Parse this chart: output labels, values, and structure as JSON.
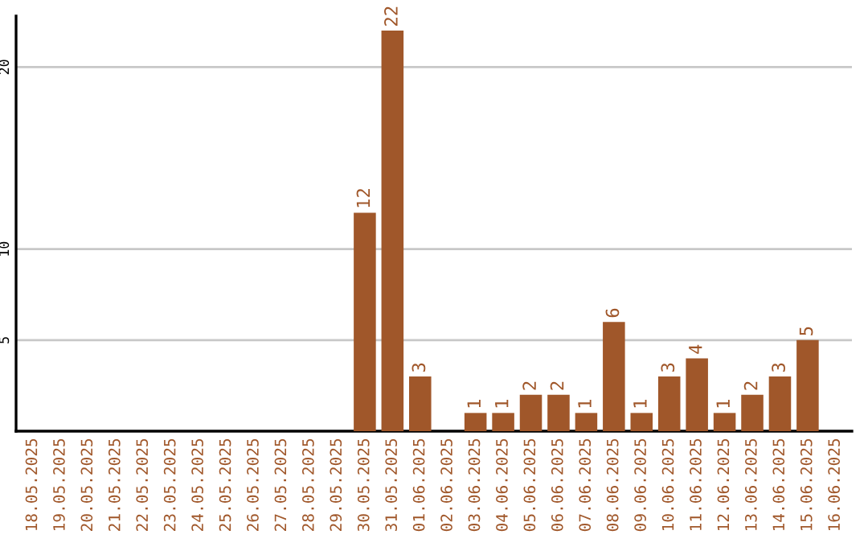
{
  "chart_data": {
    "type": "bar",
    "categories": [
      "18.05.2025",
      "19.05.2025",
      "20.05.2025",
      "21.05.2025",
      "22.05.2025",
      "23.05.2025",
      "24.05.2025",
      "25.05.2025",
      "26.05.2025",
      "27.05.2025",
      "28.05.2025",
      "29.05.2025",
      "30.05.2025",
      "31.05.2025",
      "01.06.2025",
      "02.06.2025",
      "03.06.2025",
      "04.06.2025",
      "05.06.2025",
      "06.06.2025",
      "07.06.2025",
      "08.06.2025",
      "09.06.2025",
      "10.06.2025",
      "11.06.2025",
      "12.06.2025",
      "13.06.2025",
      "14.06.2025",
      "15.06.2025",
      "16.06.2025"
    ],
    "values": [
      0,
      0,
      0,
      0,
      0,
      0,
      0,
      0,
      0,
      0,
      0,
      0,
      12,
      22,
      3,
      0,
      1,
      1,
      2,
      2,
      1,
      6,
      1,
      3,
      4,
      1,
      2,
      3,
      5,
      0
    ],
    "value_labels": [
      null,
      null,
      null,
      null,
      null,
      null,
      null,
      null,
      null,
      null,
      null,
      null,
      "12",
      "22",
      "3",
      null,
      "1",
      "1",
      "2",
      "2",
      "1",
      "6",
      "1",
      "3",
      "4",
      "1",
      "2",
      "3",
      "5",
      null
    ],
    "color": "#a0572a",
    "ylim": [
      0,
      22.8
    ],
    "yticks": [
      5,
      10,
      20
    ],
    "grid": "y",
    "legend": false
  }
}
